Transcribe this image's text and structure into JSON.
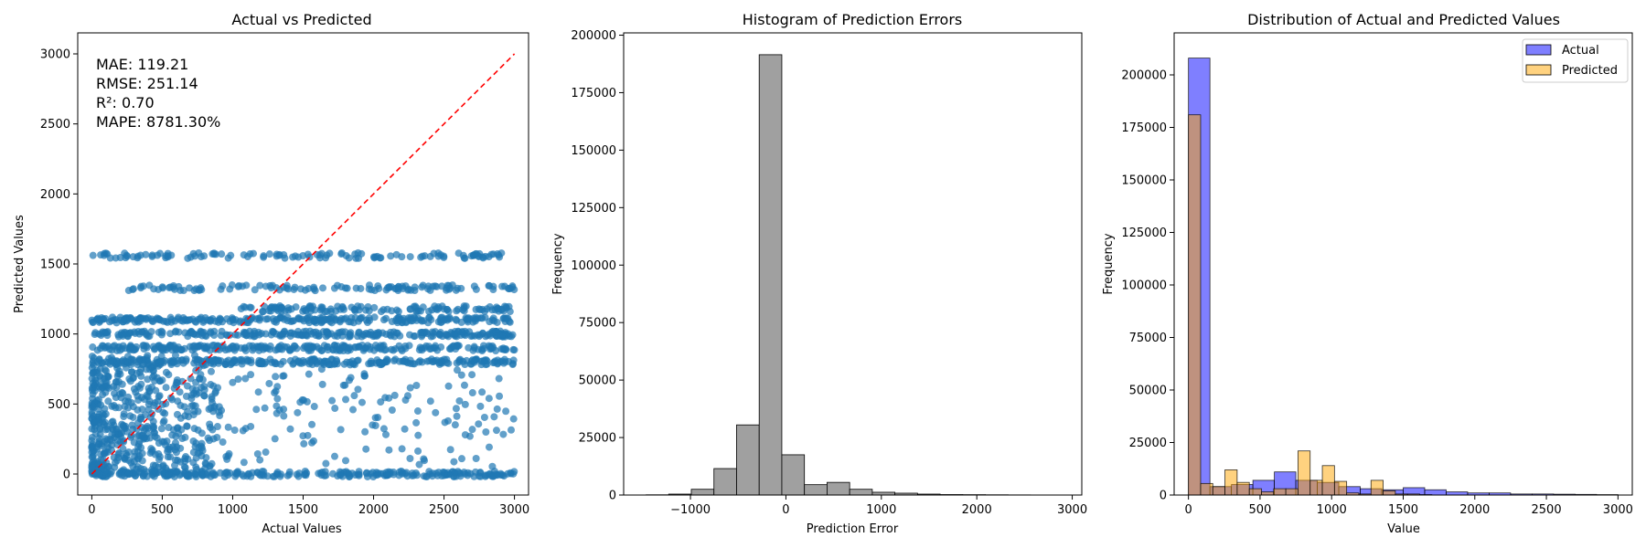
{
  "chart_data": [
    {
      "type": "scatter",
      "title": "Actual vs Predicted",
      "xlabel": "Actual Values",
      "ylabel": "Predicted Values",
      "xlim": [
        -100,
        3100
      ],
      "ylim": [
        -150,
        3150
      ],
      "xticks": [
        0,
        500,
        1000,
        1500,
        2000,
        2500,
        3000
      ],
      "yticks": [
        0,
        500,
        1000,
        1500,
        2000,
        2500,
        3000
      ],
      "point_color": "#1f77b4",
      "reference_line": {
        "from": [
          0,
          0
        ],
        "to": [
          3000,
          3000
        ],
        "color": "#ff0000",
        "style": "dashed"
      },
      "metrics": [
        "MAE: 119.21",
        "RMSE: 251.14",
        "R²: 0.70",
        "MAPE: 8781.30%"
      ],
      "prediction_bands": [
        {
          "y": 1560,
          "x_range": [
            0,
            3000
          ],
          "density": "medium"
        },
        {
          "y": 1330,
          "x_range": [
            250,
            3000
          ],
          "density": "medium"
        },
        {
          "y": 1180,
          "x_range": [
            1000,
            3000
          ],
          "density": "medium"
        },
        {
          "y": 1100,
          "x_range": [
            0,
            3000
          ],
          "density": "high"
        },
        {
          "y": 1000,
          "x_range": [
            0,
            3000
          ],
          "density": "high"
        },
        {
          "y": 900,
          "x_range": [
            0,
            3000
          ],
          "density": "high"
        },
        {
          "y": 800,
          "x_range": [
            0,
            3000
          ],
          "density": "high"
        },
        {
          "y": 450,
          "x_range": [
            0,
            3000
          ],
          "density": "low"
        },
        {
          "y": 0,
          "x_range": [
            0,
            3000
          ],
          "density": "high"
        }
      ]
    },
    {
      "type": "bar",
      "title": "Histogram of Prediction Errors",
      "xlabel": "Prediction Error",
      "ylabel": "Frequency",
      "xlim": [
        -1700,
        3100
      ],
      "ylim": [
        0,
        201000
      ],
      "xticks": [
        -1000,
        0,
        1000,
        2000,
        3000
      ],
      "yticks": [
        0,
        25000,
        50000,
        75000,
        100000,
        125000,
        150000,
        175000,
        200000
      ],
      "bar_color": "#a0a0a0",
      "bin_edges": [
        -1465,
        -1228,
        -991,
        -754,
        -517,
        -280,
        -43,
        194,
        431,
        668,
        905,
        1142,
        1379,
        1616,
        1853,
        2090,
        2327,
        2564,
        2801,
        3038
      ],
      "values": [
        100,
        400,
        2500,
        11500,
        30500,
        191500,
        17500,
        4500,
        5500,
        2500,
        1200,
        800,
        400,
        200,
        150,
        100,
        60,
        30,
        20
      ]
    },
    {
      "type": "bar",
      "title": "Distribution of Actual and Predicted Values",
      "xlabel": "Value",
      "ylabel": "Frequency",
      "xlim": [
        -100,
        3100
      ],
      "ylim": [
        0,
        220000
      ],
      "xticks": [
        0,
        500,
        1000,
        1500,
        2000,
        2500,
        3000
      ],
      "yticks": [
        0,
        25000,
        50000,
        75000,
        100000,
        125000,
        150000,
        175000,
        200000
      ],
      "legend_position": "top-right",
      "series": [
        {
          "name": "Actual",
          "color": "#0000ff",
          "bin_edges": [
            0,
            150,
            300,
            450,
            600,
            750,
            900,
            1050,
            1200,
            1350,
            1500,
            1650,
            1800,
            1950,
            2100,
            2250,
            2400,
            2550,
            2700,
            2850,
            3000
          ],
          "values": [
            208000,
            4000,
            5000,
            7000,
            11000,
            7000,
            6000,
            4000,
            3000,
            2500,
            3500,
            2500,
            1500,
            1000,
            1000,
            500,
            500,
            400,
            300,
            200
          ]
        },
        {
          "name": "Predicted",
          "color": "#ffa500",
          "bin_edges": [
            0,
            85,
            170,
            255,
            340,
            425,
            510,
            595,
            680,
            765,
            850,
            935,
            1020,
            1105,
            1190,
            1275,
            1360,
            1445,
            1530,
            1615,
            1700
          ],
          "values": [
            181000,
            5500,
            4000,
            12000,
            6000,
            3000,
            1500,
            3000,
            3000,
            21000,
            7000,
            14000,
            6500,
            1000,
            500,
            7000,
            2000,
            500,
            500,
            200
          ]
        }
      ]
    }
  ]
}
